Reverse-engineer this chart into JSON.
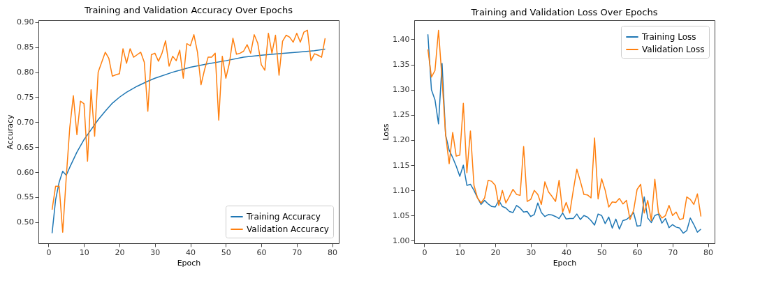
{
  "chart_data": [
    {
      "type": "line",
      "title": "Training and Validation Accuracy Over Epochs",
      "xlabel": "Epoch",
      "ylabel": "Accuracy",
      "xlim": [
        -2.85,
        81.85
      ],
      "ylim": [
        0.458,
        0.904
      ],
      "xticks": [
        0,
        10,
        20,
        30,
        40,
        50,
        60,
        70,
        80
      ],
      "yticks": [
        {
          "value": 0.5,
          "label": "0.50"
        },
        0.55,
        {
          "value": 0.6,
          "label": "0.60"
        },
        0.65,
        {
          "value": 0.7,
          "label": "0.70"
        },
        0.75,
        {
          "value": 0.8,
          "label": "0.80"
        },
        0.85,
        {
          "value": 0.9,
          "label": "0.90"
        }
      ],
      "grid": false,
      "legend": "bottom right",
      "series": [
        {
          "name": "Training Accuracy",
          "color": "#1f77b4",
          "x": [
            1,
            2,
            3,
            4,
            5,
            6,
            8,
            10,
            12,
            14,
            16,
            18,
            20,
            22,
            25,
            28,
            30,
            35,
            40,
            45,
            50,
            55,
            60,
            65,
            70,
            75,
            78
          ],
          "values": [
            0.478,
            0.545,
            0.58,
            0.602,
            0.594,
            0.61,
            0.64,
            0.665,
            0.685,
            0.705,
            0.722,
            0.738,
            0.75,
            0.76,
            0.772,
            0.782,
            0.788,
            0.8,
            0.81,
            0.817,
            0.823,
            0.83,
            0.834,
            0.837,
            0.84,
            0.843,
            0.846
          ]
        },
        {
          "name": "Validation Accuracy",
          "color": "#ff7f0e",
          "x": [
            1,
            2,
            3,
            4,
            5,
            6,
            7,
            8,
            9,
            10,
            11,
            12,
            13,
            14,
            15,
            16,
            17,
            18,
            19,
            20,
            21,
            22,
            23,
            24,
            25,
            26,
            27,
            28,
            29,
            30,
            31,
            32,
            33,
            34,
            35,
            36,
            37,
            38,
            39,
            40,
            41,
            42,
            43,
            44,
            45,
            46,
            47,
            48,
            49,
            50,
            51,
            52,
            53,
            54,
            55,
            56,
            57,
            58,
            59,
            60,
            61,
            62,
            63,
            64,
            65,
            66,
            67,
            68,
            69,
            70,
            71,
            72,
            73,
            74,
            75,
            76,
            77,
            78
          ],
          "values": [
            0.525,
            0.572,
            0.572,
            0.48,
            0.59,
            0.69,
            0.753,
            0.675,
            0.742,
            0.737,
            0.622,
            0.765,
            0.672,
            0.8,
            0.82,
            0.84,
            0.828,
            0.792,
            0.795,
            0.797,
            0.847,
            0.818,
            0.847,
            0.83,
            0.835,
            0.84,
            0.82,
            0.722,
            0.835,
            0.838,
            0.822,
            0.838,
            0.863,
            0.812,
            0.832,
            0.823,
            0.844,
            0.788,
            0.857,
            0.853,
            0.875,
            0.84,
            0.775,
            0.805,
            0.83,
            0.83,
            0.838,
            0.704,
            0.832,
            0.788,
            0.818,
            0.868,
            0.836,
            0.838,
            0.842,
            0.855,
            0.838,
            0.875,
            0.858,
            0.815,
            0.804,
            0.878,
            0.838,
            0.874,
            0.794,
            0.862,
            0.874,
            0.87,
            0.86,
            0.878,
            0.86,
            0.88,
            0.884,
            0.823,
            0.837,
            0.834,
            0.83,
            0.868
          ]
        }
      ]
    },
    {
      "type": "line",
      "title": "Training and Validation Loss Over Epochs",
      "xlabel": "Epoch",
      "ylabel": "Loss",
      "xlim": [
        -2.85,
        81.85
      ],
      "ylim": [
        0.995,
        1.438
      ],
      "xticks": [
        0,
        10,
        20,
        30,
        40,
        50,
        60,
        70,
        80
      ],
      "yticks": [
        {
          "value": 1,
          "label": "1.00"
        },
        1.05,
        {
          "value": 1.1,
          "label": "1.10"
        },
        1.15,
        {
          "value": 1.2,
          "label": "1.20"
        },
        1.25,
        {
          "value": 1.3,
          "label": "1.30"
        },
        1.35,
        {
          "value": 1.4,
          "label": "1.40"
        }
      ],
      "grid": false,
      "legend": "top right",
      "series": [
        {
          "name": "Training Loss",
          "color": "#1f77b4",
          "x": [
            1,
            2,
            3,
            4,
            5,
            6,
            7,
            8,
            9,
            10,
            11,
            12,
            13,
            14,
            15,
            16,
            17,
            18,
            19,
            20,
            21,
            22,
            23,
            24,
            25,
            26,
            27,
            28,
            29,
            30,
            31,
            32,
            33,
            34,
            35,
            36,
            37,
            38,
            39,
            40,
            41,
            42,
            43,
            44,
            45,
            46,
            47,
            48,
            49,
            50,
            51,
            52,
            53,
            54,
            55,
            56,
            57,
            58,
            59,
            60,
            61,
            62,
            63,
            64,
            65,
            66,
            67,
            68,
            69,
            70,
            71,
            72,
            73,
            74,
            75,
            76,
            77,
            78
          ],
          "values": [
            1.41,
            1.3,
            1.28,
            1.232,
            1.352,
            1.21,
            1.18,
            1.165,
            1.148,
            1.128,
            1.15,
            1.11,
            1.112,
            1.1,
            1.085,
            1.072,
            1.08,
            1.073,
            1.068,
            1.067,
            1.08,
            1.068,
            1.065,
            1.058,
            1.056,
            1.07,
            1.065,
            1.057,
            1.058,
            1.048,
            1.052,
            1.075,
            1.056,
            1.048,
            1.052,
            1.051,
            1.048,
            1.044,
            1.055,
            1.043,
            1.044,
            1.044,
            1.053,
            1.042,
            1.05,
            1.047,
            1.04,
            1.031,
            1.053,
            1.05,
            1.034,
            1.047,
            1.025,
            1.043,
            1.023,
            1.04,
            1.042,
            1.048,
            1.056,
            1.029,
            1.03,
            1.087,
            1.045,
            1.036,
            1.05,
            1.053,
            1.035,
            1.044,
            1.026,
            1.032,
            1.027,
            1.025,
            1.015,
            1.02,
            1.045,
            1.032,
            1.017,
            1.023
          ]
        },
        {
          "name": "Validation Loss",
          "color": "#ff7f0e",
          "x": [
            1,
            2,
            3,
            4,
            5,
            6,
            7,
            8,
            9,
            10,
            11,
            12,
            13,
            14,
            15,
            16,
            17,
            18,
            19,
            20,
            21,
            22,
            23,
            24,
            25,
            26,
            27,
            28,
            29,
            30,
            31,
            32,
            33,
            34,
            35,
            36,
            37,
            38,
            39,
            40,
            41,
            42,
            43,
            44,
            45,
            46,
            47,
            48,
            49,
            50,
            51,
            52,
            53,
            54,
            55,
            56,
            57,
            58,
            59,
            60,
            61,
            62,
            63,
            64,
            65,
            66,
            67,
            68,
            69,
            70,
            71,
            72,
            73,
            74,
            75,
            76,
            77,
            78
          ],
          "values": [
            1.38,
            1.325,
            1.338,
            1.418,
            1.32,
            1.21,
            1.153,
            1.215,
            1.168,
            1.17,
            1.273,
            1.135,
            1.218,
            1.11,
            1.085,
            1.075,
            1.085,
            1.12,
            1.118,
            1.11,
            1.07,
            1.1,
            1.075,
            1.088,
            1.102,
            1.092,
            1.09,
            1.187,
            1.078,
            1.082,
            1.1,
            1.092,
            1.072,
            1.117,
            1.097,
            1.088,
            1.078,
            1.12,
            1.057,
            1.076,
            1.055,
            1.1,
            1.142,
            1.118,
            1.092,
            1.091,
            1.085,
            1.204,
            1.083,
            1.123,
            1.1,
            1.067,
            1.077,
            1.076,
            1.084,
            1.073,
            1.08,
            1.042,
            1.06,
            1.102,
            1.112,
            1.055,
            1.08,
            1.04,
            1.122,
            1.056,
            1.045,
            1.05,
            1.07,
            1.05,
            1.057,
            1.042,
            1.044,
            1.087,
            1.082,
            1.072,
            1.093,
            1.048
          ]
        }
      ]
    }
  ]
}
